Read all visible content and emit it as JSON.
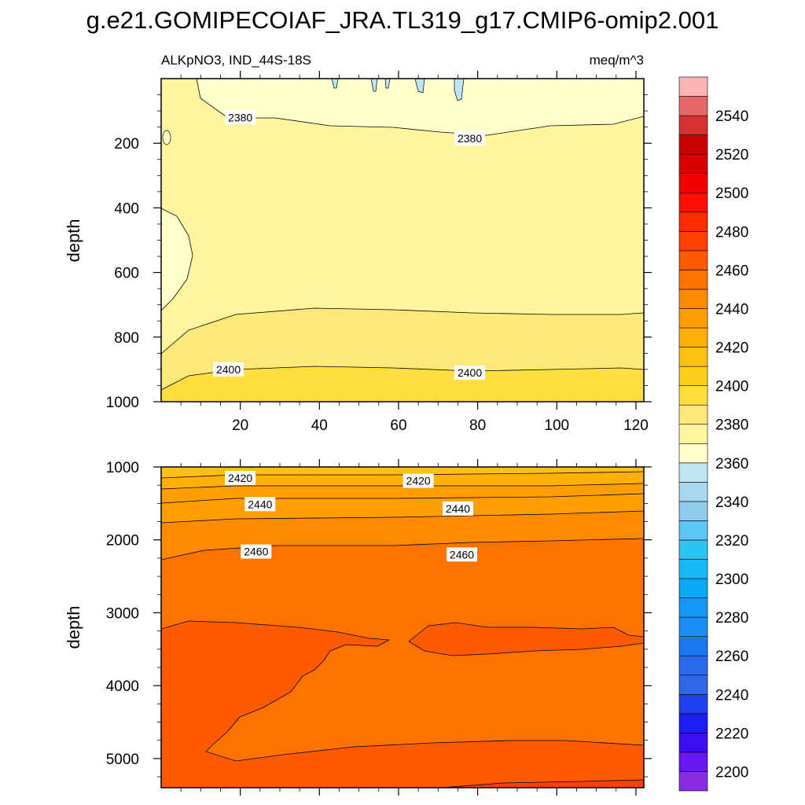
{
  "title": "g.e21.GOMIPECOIAF_JRA.TL319_g17.CMIP6-omip2.001",
  "chart_data": {
    "type": "contour",
    "variable": "ALKpNO3, IND_44S-18S",
    "units": "meq/m^3",
    "colorbar": {
      "levels": [
        2200,
        2210,
        2220,
        2230,
        2240,
        2250,
        2260,
        2270,
        2280,
        2290,
        2300,
        2310,
        2320,
        2330,
        2340,
        2350,
        2360,
        2370,
        2380,
        2390,
        2400,
        2410,
        2420,
        2430,
        2440,
        2450,
        2460,
        2470,
        2480,
        2490,
        2500,
        2510,
        2520,
        2530,
        2540,
        2550
      ],
      "tick_labels": [
        "2200",
        "2220",
        "2240",
        "2260",
        "2280",
        "2300",
        "2320",
        "2340",
        "2360",
        "2380",
        "2400",
        "2420",
        "2440",
        "2460",
        "2480",
        "2500",
        "2520",
        "2540"
      ],
      "colors": [
        "#8a2ce6",
        "#6a16f0",
        "#3c0ff0",
        "#1c1cf5",
        "#2040f0",
        "#3266e8",
        "#2a6aec",
        "#1c78f0",
        "#1a8cf5",
        "#1398f5",
        "#0aaaf5",
        "#18b8f5",
        "#2cc4f5",
        "#5ec6f2",
        "#8ecbec",
        "#a8d8f0",
        "#bfe4f2",
        "#ffffcc",
        "#fff59e",
        "#fee87a",
        "#fede3c",
        "#fece1c",
        "#fec010",
        "#feb008",
        "#fe9e00",
        "#fe8a00",
        "#fe7200",
        "#fe5a00",
        "#fe4000",
        "#fe2a00",
        "#fe1000",
        "#f00000",
        "#d80000",
        "#c80000",
        "#d83030",
        "#e86868",
        "#fab4b4"
      ]
    },
    "panels": [
      {
        "name": "upper",
        "ylabel": "depth",
        "xlim": [
          0,
          122
        ],
        "ylim": [
          1000,
          0
        ],
        "xticks": [
          20,
          40,
          60,
          80,
          100,
          120
        ],
        "yticks": [
          200,
          400,
          600,
          800,
          1000
        ],
        "fill_bands": [
          {
            "level": 2370,
            "region": "surface lenses at x≈44, 54, 65, 75"
          },
          {
            "level": 2380,
            "region": "0-150 m and west lens 400-700 m"
          },
          {
            "level": 2390,
            "region": "150-730 m"
          },
          {
            "level": 2400,
            "region": "730-900 m"
          },
          {
            "level": 2410,
            "region": "900-1000 m"
          }
        ],
        "contour_labels": [
          {
            "text": "2380",
            "x": 20,
            "y": 120
          },
          {
            "text": "2380",
            "x": 78,
            "y": 185
          },
          {
            "text": "2400",
            "x": 17,
            "y": 900
          },
          {
            "text": "2400",
            "x": 78,
            "y": 910
          }
        ]
      },
      {
        "name": "lower",
        "ylabel": "depth",
        "xlim": [
          0,
          122
        ],
        "ylim": [
          5400,
          1000
        ],
        "yticks": [
          1000,
          2000,
          3000,
          4000,
          5000
        ],
        "fill_bands": [
          {
            "level": 2410,
            "region": "1000-1100 m"
          },
          {
            "level": 2420,
            "region": "1100-1450 m"
          },
          {
            "level": 2430,
            "region": "1450-1800 m"
          },
          {
            "level": 2440,
            "region": "1800-2200 m"
          },
          {
            "level": 2450,
            "region": "2200-3100 m, 3500-4800 m interior"
          },
          {
            "level": 2460,
            "region": "3100-3500 m bands, west deep wedge, 4800-5350 m"
          },
          {
            "level": 2470,
            "region": "bottom corner east, 5250-5350 m"
          }
        ],
        "contour_labels": [
          {
            "text": "2420",
            "x": 20,
            "y": 1150
          },
          {
            "text": "2420",
            "x": 65,
            "y": 1190
          },
          {
            "text": "2440",
            "x": 25,
            "y": 1510
          },
          {
            "text": "2440",
            "x": 75,
            "y": 1570
          },
          {
            "text": "2460",
            "x": 24,
            "y": 2160
          },
          {
            "text": "2460",
            "x": 76,
            "y": 2200
          }
        ]
      }
    ]
  }
}
